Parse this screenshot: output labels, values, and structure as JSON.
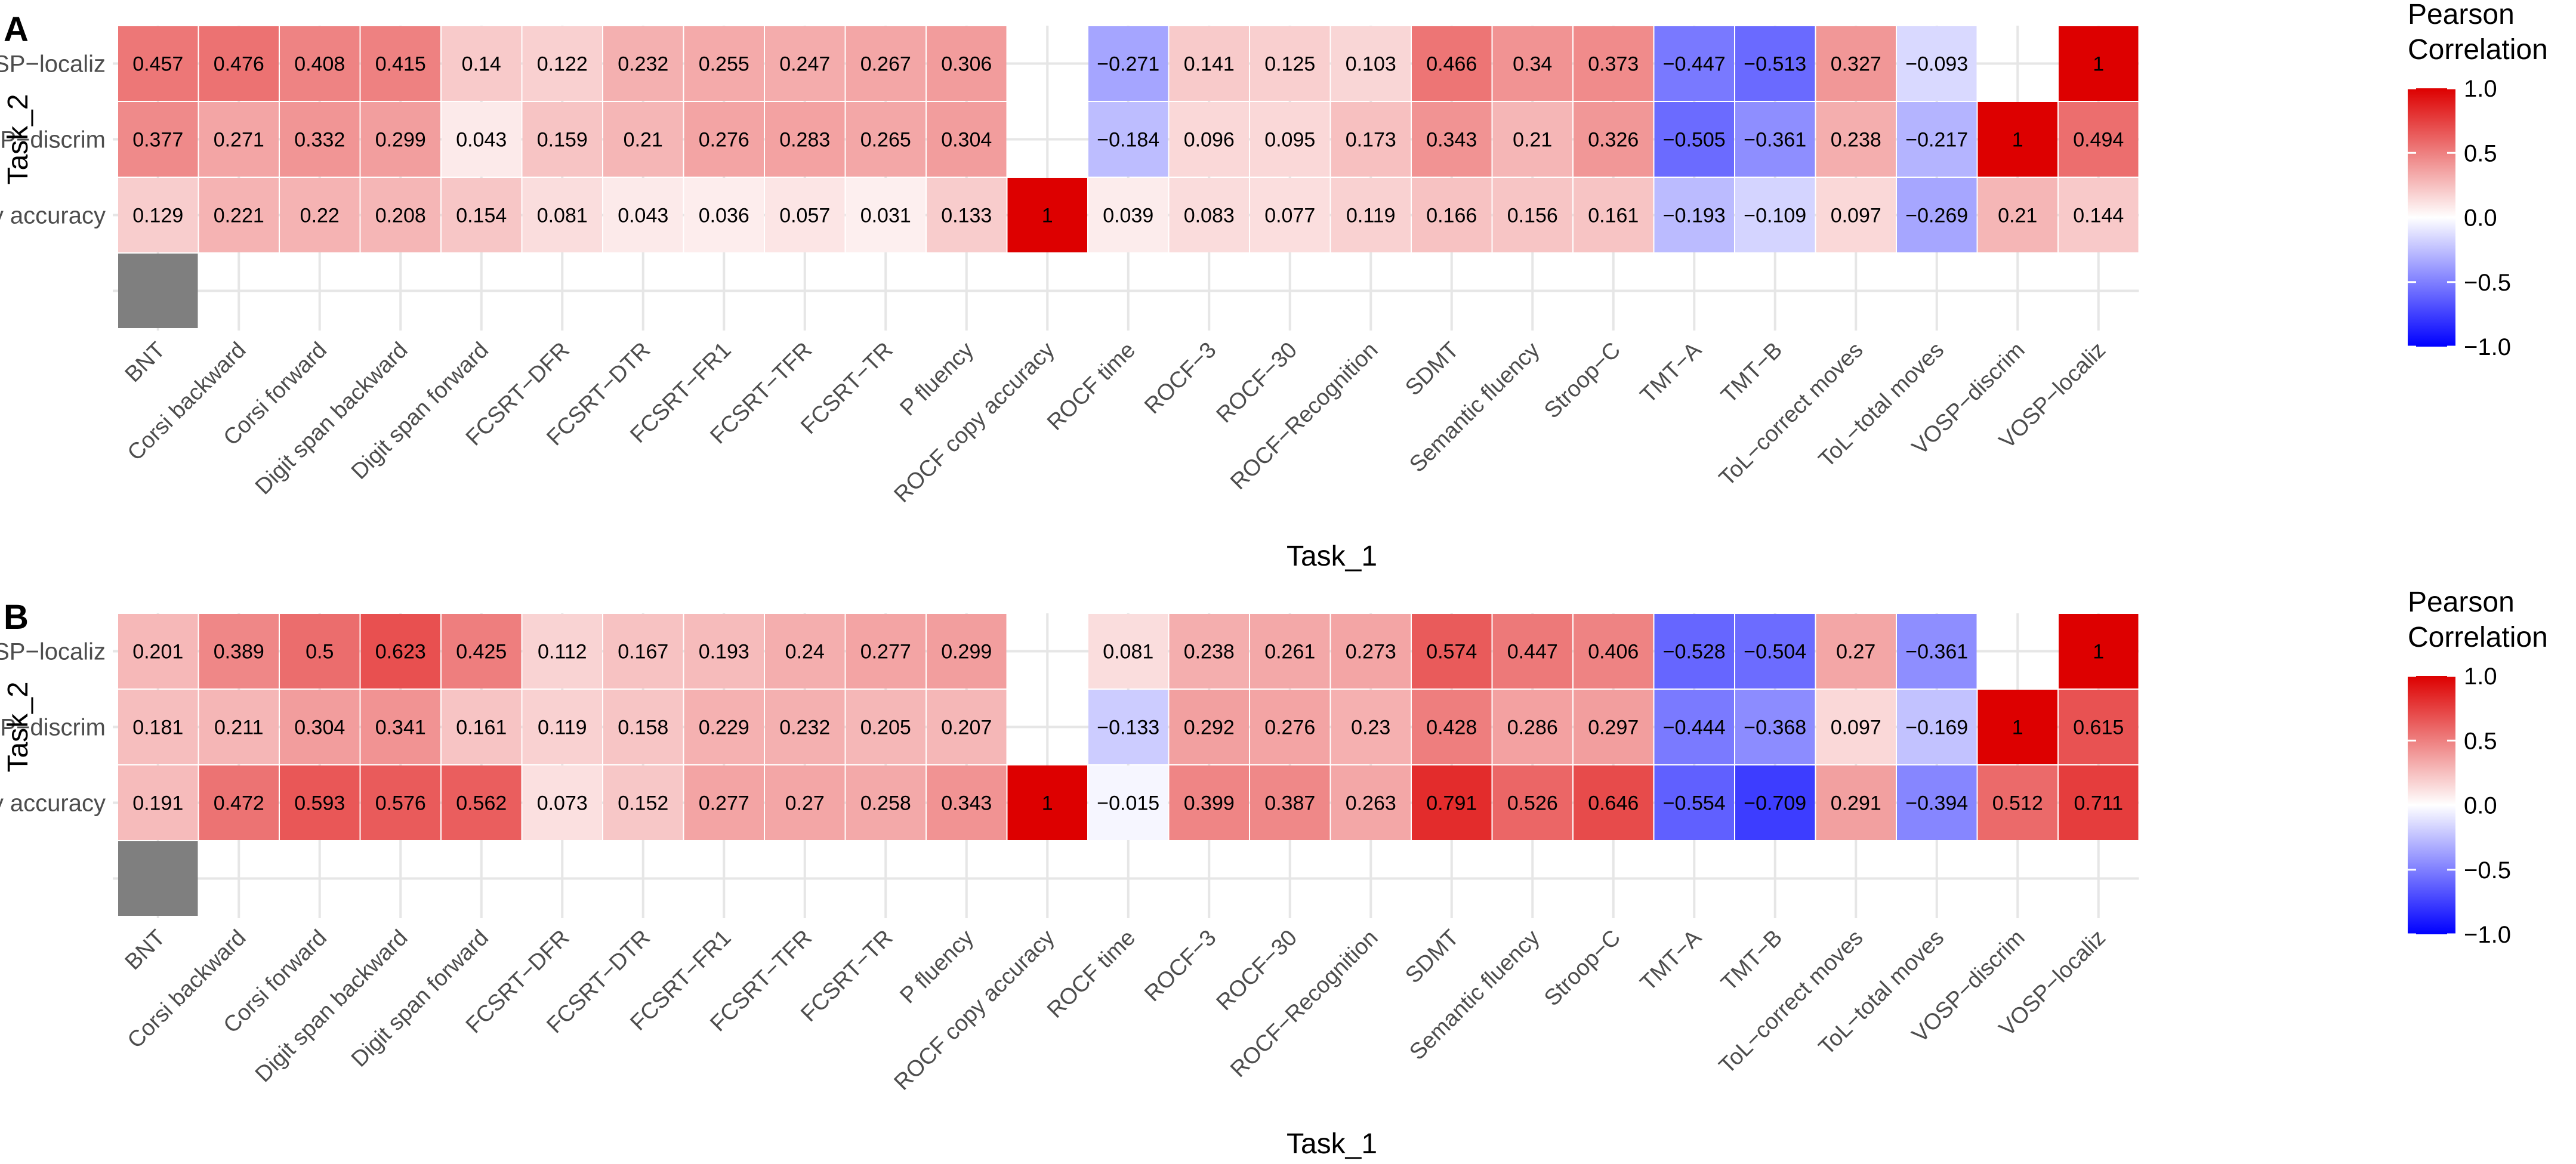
{
  "chart_data": [
    {
      "panel_label": "A",
      "type": "heatmap",
      "xlabel": "Task_1",
      "ylabel": "Task_2",
      "x": [
        "BNT",
        "Corsi backward",
        "Corsi forward",
        "Digit span backward",
        "Digit span forward",
        "FCSRT−DFR",
        "FCSRT−DTR",
        "FCSRT−FR1",
        "FCSRT−TFR",
        "FCSRT−TR",
        "P fluency",
        "ROCF copy accuracy",
        "ROCF time",
        "ROCF−3",
        "ROCF−30",
        "ROCF−Recognition",
        "SDMT",
        "Semantic fluency",
        "Stroop−C",
        "TMT−A",
        "TMT−B",
        "ToL−correct moves",
        "ToL−total moves",
        "VOSP−discrim",
        "VOSP−localiz"
      ],
      "y": [
        "VOSP−localiz",
        "VOSP−discrim",
        "ROCF copy accuracy",
        ""
      ],
      "values": [
        [
          "0.457",
          "0.476",
          "0.408",
          "0.415",
          "0.14",
          "0.122",
          "0.232",
          "0.255",
          "0.247",
          "0.267",
          "0.306",
          null,
          "−0.271",
          "0.141",
          "0.125",
          "0.103",
          "0.466",
          "0.34",
          "0.373",
          "−0.447",
          "−0.513",
          "0.327",
          "−0.093",
          null,
          "1"
        ],
        [
          "0.377",
          "0.271",
          "0.332",
          "0.299",
          "0.043",
          "0.159",
          "0.21",
          "0.276",
          "0.283",
          "0.265",
          "0.304",
          null,
          "−0.184",
          "0.096",
          "0.095",
          "0.173",
          "0.343",
          "0.21",
          "0.326",
          "−0.505",
          "−0.361",
          "0.238",
          "−0.217",
          "1",
          "0.494"
        ],
        [
          "0.129",
          "0.221",
          "0.22",
          "0.208",
          "0.154",
          "0.081",
          "0.043",
          "0.036",
          "0.057",
          "0.031",
          "0.133",
          "1",
          "0.039",
          "0.083",
          "0.077",
          "0.119",
          "0.166",
          "0.156",
          "0.161",
          "−0.193",
          "−0.109",
          "0.097",
          "−0.269",
          "0.21",
          "0.144"
        ],
        [
          "NA",
          null,
          null,
          null,
          null,
          null,
          null,
          null,
          null,
          null,
          null,
          null,
          null,
          null,
          null,
          null,
          null,
          null,
          null,
          null,
          null,
          null,
          null,
          null,
          null
        ]
      ],
      "legend": {
        "title_line1": "Pearson",
        "title_line2": "Correlation",
        "ticks": [
          "1.0",
          "0.5",
          "0.0",
          "−0.5",
          "−1.0"
        ],
        "range": [
          -1,
          1
        ]
      }
    },
    {
      "panel_label": "B",
      "type": "heatmap",
      "xlabel": "Task_1",
      "ylabel": "Task_2",
      "x": [
        "BNT",
        "Corsi backward",
        "Corsi forward",
        "Digit span backward",
        "Digit span forward",
        "FCSRT−DFR",
        "FCSRT−DTR",
        "FCSRT−FR1",
        "FCSRT−TFR",
        "FCSRT−TR",
        "P fluency",
        "ROCF copy accuracy",
        "ROCF time",
        "ROCF−3",
        "ROCF−30",
        "ROCF−Recognition",
        "SDMT",
        "Semantic fluency",
        "Stroop−C",
        "TMT−A",
        "TMT−B",
        "ToL−correct moves",
        "ToL−total moves",
        "VOSP−discrim",
        "VOSP−localiz"
      ],
      "y": [
        "VOSP−localiz",
        "VOSP−discrim",
        "ROCF copy accuracy",
        ""
      ],
      "values": [
        [
          "0.201",
          "0.389",
          "0.5",
          "0.623",
          "0.425",
          "0.112",
          "0.167",
          "0.193",
          "0.24",
          "0.277",
          "0.299",
          null,
          "0.081",
          "0.238",
          "0.261",
          "0.273",
          "0.574",
          "0.447",
          "0.406",
          "−0.528",
          "−0.504",
          "0.27",
          "−0.361",
          null,
          "1"
        ],
        [
          "0.181",
          "0.211",
          "0.304",
          "0.341",
          "0.161",
          "0.119",
          "0.158",
          "0.229",
          "0.232",
          "0.205",
          "0.207",
          null,
          "−0.133",
          "0.292",
          "0.276",
          "0.23",
          "0.428",
          "0.286",
          "0.297",
          "−0.444",
          "−0.368",
          "0.097",
          "−0.169",
          "1",
          "0.615"
        ],
        [
          "0.191",
          "0.472",
          "0.593",
          "0.576",
          "0.562",
          "0.073",
          "0.152",
          "0.277",
          "0.27",
          "0.258",
          "0.343",
          "1",
          "−0.015",
          "0.399",
          "0.387",
          "0.263",
          "0.791",
          "0.526",
          "0.646",
          "−0.554",
          "−0.709",
          "0.291",
          "−0.394",
          "0.512",
          "0.711"
        ],
        [
          "NA",
          null,
          null,
          null,
          null,
          null,
          null,
          null,
          null,
          null,
          null,
          null,
          null,
          null,
          null,
          null,
          null,
          null,
          null,
          null,
          null,
          null,
          null,
          null,
          null
        ]
      ],
      "legend": {
        "title_line1": "Pearson",
        "title_line2": "Correlation",
        "ticks": [
          "1.0",
          "0.5",
          "0.0",
          "−0.5",
          "−1.0"
        ],
        "range": [
          -1,
          1
        ]
      }
    }
  ],
  "colors": {
    "low": "#0000ff",
    "mid": "#ffffff",
    "high": "#dd0000",
    "na": "#7f7f7f",
    "grid": "#e6e6e6",
    "text": "#000000",
    "axis_text": "#4d4d4d"
  }
}
